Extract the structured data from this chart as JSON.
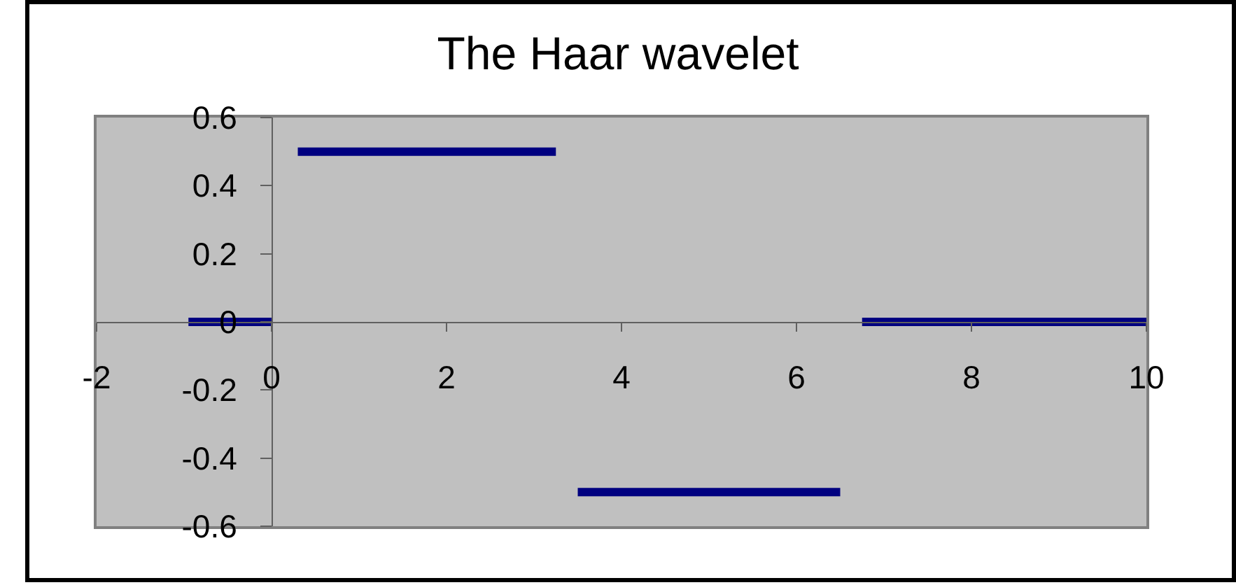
{
  "chart_data": {
    "type": "line",
    "title": "The Haar wavelet",
    "x": [
      -0.95,
      0,
      0.15,
      0.3,
      3.25,
      3.4,
      3.5,
      6.5,
      6.6,
      6.75,
      10
    ],
    "series": [
      {
        "color": "#000080",
        "values": [
          0,
          0,
          null,
          0.5,
          0.5,
          null,
          -0.5,
          -0.5,
          null,
          0,
          0
        ]
      }
    ],
    "xlim": [
      -2,
      10
    ],
    "ylim": [
      -0.6,
      0.6
    ],
    "xticks": [
      -2,
      0,
      2,
      4,
      6,
      8,
      10
    ],
    "yticks": [
      -0.6,
      -0.4,
      -0.2,
      0,
      0.2,
      0.4,
      0.6
    ],
    "grid": false,
    "marker": "none",
    "line_style": "solid"
  }
}
